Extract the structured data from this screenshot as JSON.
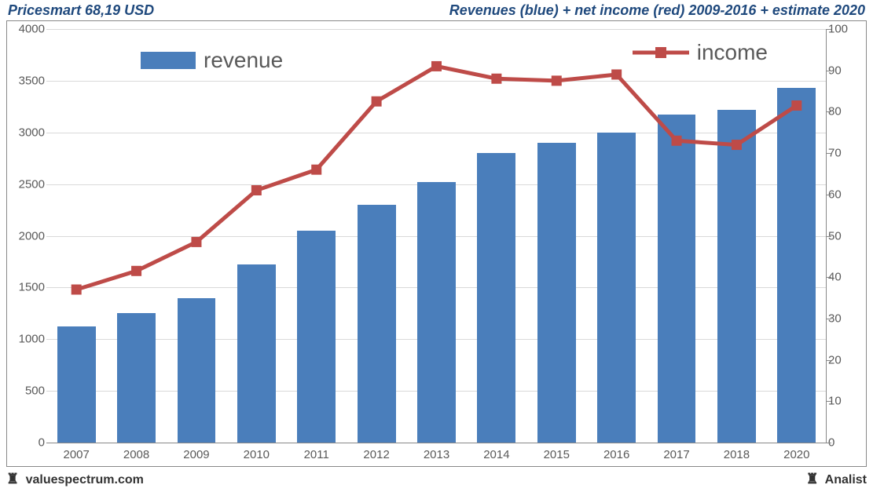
{
  "header": {
    "left": "Pricesmart 68,19 USD",
    "right": "Revenues (blue) + net income (red) 2009-2016 + estimate 2020",
    "text_color": "#1f497d",
    "fontsize": 18
  },
  "footer": {
    "left_icon": "♜",
    "left_text": "valuespectrum.com",
    "right_icon": "♜",
    "right_text": "Analist"
  },
  "chart": {
    "type": "bar+line",
    "background_color": "#ffffff",
    "grid_color": "#d9d9d9",
    "border_color": "#888888",
    "tick_font_color": "#595959",
    "tick_fontsize": 15,
    "categories": [
      "2007",
      "2008",
      "2009",
      "2010",
      "2011",
      "2012",
      "2013",
      "2014",
      "2015",
      "2016",
      "2017",
      "2018",
      "2020"
    ],
    "bar_series": {
      "name": "revenue",
      "color": "#4a7ebb",
      "values": [
        1120,
        1250,
        1400,
        1720,
        2050,
        2300,
        2520,
        2800,
        2900,
        3000,
        3170,
        3220,
        3430
      ],
      "bar_width_ratio": 0.64
    },
    "line_series": {
      "name": "income",
      "color": "#be4b48",
      "line_width": 5,
      "marker_size": 13,
      "values": [
        37,
        41.5,
        48.5,
        61,
        66,
        82.5,
        91,
        88,
        87.5,
        89,
        73,
        72,
        81.5
      ]
    },
    "left_axis": {
      "min": 0,
      "max": 4000,
      "step": 500
    },
    "right_axis": {
      "min": 0,
      "max": 100,
      "step": 10
    },
    "legend": {
      "revenue_label": "revenue",
      "income_label": "income",
      "label_fontsize": 28,
      "label_color": "#595959"
    }
  }
}
